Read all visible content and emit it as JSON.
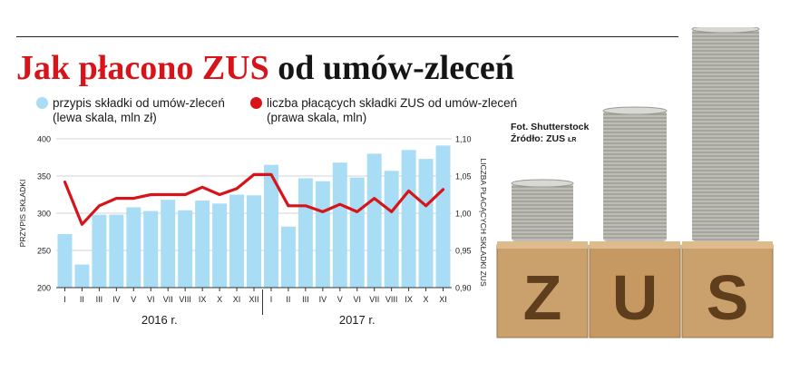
{
  "title": {
    "accent": "Jak płacono ZUS",
    "rest": " od umów-zleceń"
  },
  "legend": {
    "bars_label": "przypis składki od umów-zleceń",
    "bars_sub": "(lewa skala, mln zł)",
    "line_label": "liczba płacących składki ZUS od umów-zleceń",
    "line_sub": "(prawa skala, mln)"
  },
  "photo_credit": {
    "line1": "Fot. Shutterstock",
    "line2": "Źródło: ZUS",
    "initials": "ŁR"
  },
  "photo": {
    "block_letters": [
      "Z",
      "U",
      "S"
    ]
  },
  "colors": {
    "bars": "#a9dcf5",
    "line": "#d7141a",
    "title_accent": "#d7141a",
    "wood": "#c99a63"
  },
  "chart_data": {
    "type": "bar+line",
    "categories": [
      "I",
      "II",
      "III",
      "IV",
      "V",
      "VI",
      "VII",
      "VIII",
      "IX",
      "X",
      "XI",
      "XII",
      "I",
      "II",
      "III",
      "IV",
      "V",
      "VI",
      "VII",
      "VIII",
      "IX",
      "X",
      "XI"
    ],
    "year_labels": [
      {
        "label": "2016 r.",
        "from": 0,
        "to": 11
      },
      {
        "label": "2017 r.",
        "from": 12,
        "to": 22
      }
    ],
    "series": [
      {
        "name": "przypis składki od umów-zleceń",
        "type": "bar",
        "axis": "left",
        "values": [
          272,
          231,
          298,
          298,
          308,
          303,
          318,
          304,
          317,
          313,
          325,
          324,
          365,
          282,
          347,
          343,
          368,
          348,
          380,
          357,
          385,
          373,
          391
        ]
      },
      {
        "name": "liczba płacących składki ZUS od umów-zleceń",
        "type": "line",
        "axis": "right",
        "values": [
          1.042,
          0.985,
          1.01,
          1.02,
          1.02,
          1.025,
          1.025,
          1.025,
          1.035,
          1.025,
          1.033,
          1.052,
          1.052,
          1.01,
          1.01,
          1.002,
          1.012,
          1.002,
          1.02,
          1.002,
          1.03,
          1.01,
          1.032
        ]
      }
    ],
    "y_left": {
      "label": "PRZYPIS SKŁADKI",
      "ticks": [
        "400",
        "350",
        "300",
        "250",
        "200"
      ],
      "range": [
        200,
        400
      ]
    },
    "y_right": {
      "label": "LICZBA PŁACĄCYCH SKŁADKI ZUS",
      "ticks": [
        "1,10",
        "1,05",
        "1,00",
        "0,95",
        "0,90"
      ],
      "range": [
        0.9,
        1.1
      ]
    },
    "grid": "horizontal"
  }
}
